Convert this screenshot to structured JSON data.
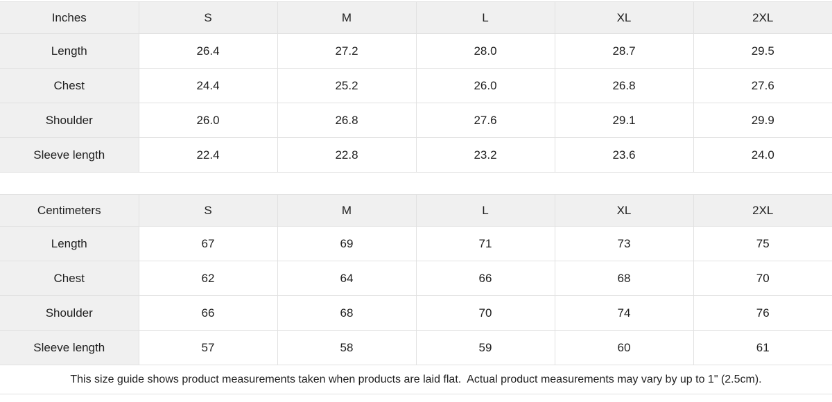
{
  "colors": {
    "cell_bg": "#f0f0f0",
    "border": "#e1e1e1",
    "text": "#1f1f1f"
  },
  "inches": {
    "unit_label": "Inches",
    "sizes": [
      "S",
      "M",
      "L",
      "XL",
      "2XL"
    ],
    "rows": [
      {
        "label": "Length",
        "values": [
          "26.4",
          "27.2",
          "28.0",
          "28.7",
          "29.5"
        ]
      },
      {
        "label": "Chest",
        "values": [
          "24.4",
          "25.2",
          "26.0",
          "26.8",
          "27.6"
        ]
      },
      {
        "label": "Shoulder",
        "values": [
          "26.0",
          "26.8",
          "27.6",
          "29.1",
          "29.9"
        ]
      },
      {
        "label": "Sleeve length",
        "values": [
          "22.4",
          "22.8",
          "23.2",
          "23.6",
          "24.0"
        ]
      }
    ]
  },
  "centimeters": {
    "unit_label": "Centimeters",
    "sizes": [
      "S",
      "M",
      "L",
      "XL",
      "2XL"
    ],
    "rows": [
      {
        "label": "Length",
        "values": [
          "67",
          "69",
          "71",
          "73",
          "75"
        ]
      },
      {
        "label": "Chest",
        "values": [
          "62",
          "64",
          "66",
          "68",
          "70"
        ]
      },
      {
        "label": "Shoulder",
        "values": [
          "66",
          "68",
          "70",
          "74",
          "76"
        ]
      },
      {
        "label": "Sleeve length",
        "values": [
          "57",
          "58",
          "59",
          "60",
          "61"
        ]
      }
    ]
  },
  "footer": {
    "note": "This size guide shows product measurements taken when products are laid flat.  Actual product measurements may vary by up to 1\" (2.5cm)."
  }
}
